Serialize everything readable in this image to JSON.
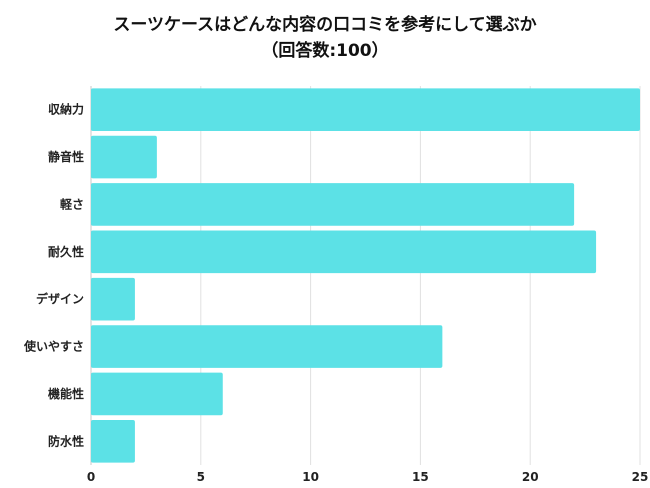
{
  "chart_data": {
    "type": "bar",
    "orientation": "horizontal",
    "title_line1": "スーツケースはどんな内容の口コミを参考にして選ぶか",
    "title_line2": "（回答数:100）",
    "categories": [
      "収納力",
      "静音性",
      "軽さ",
      "耐久性",
      "デザイン",
      "使いやすさ",
      "機能性",
      "防水性"
    ],
    "values": [
      25,
      3,
      22,
      23,
      2,
      16,
      6,
      2
    ],
    "xlim": [
      0,
      25
    ],
    "xticks": [
      0,
      5,
      10,
      15,
      20,
      25
    ],
    "grid": true,
    "legend": "none",
    "colors": {
      "bar": "#5ce1e6",
      "grid": "#e0e0e0",
      "axis": "#c8c8c8"
    }
  }
}
